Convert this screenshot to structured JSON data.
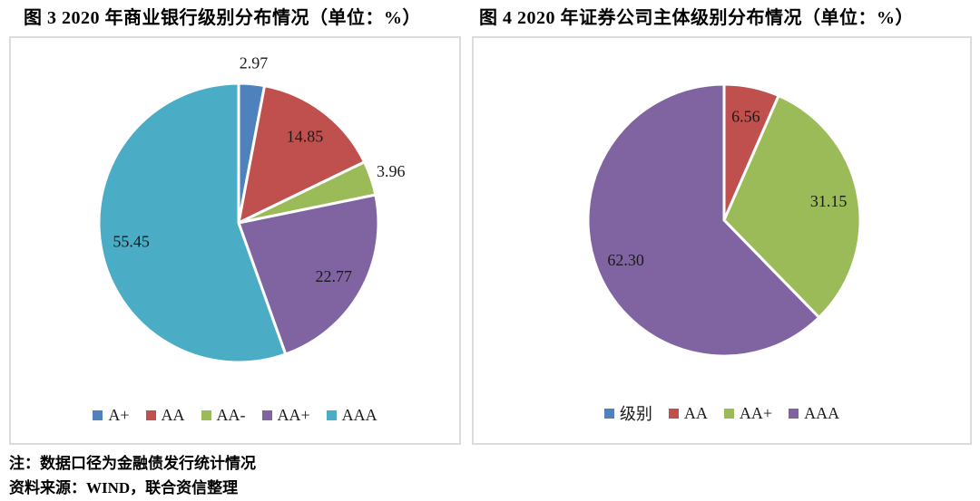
{
  "palette": {
    "blue": "#4F81BD",
    "red": "#C0504D",
    "green": "#9BBB59",
    "purple": "#8064A2",
    "cyan": "#4BACC6",
    "panel_border": "#dcdcdc",
    "label_text": "#1a1a1a"
  },
  "chart_data": [
    {
      "type": "pie",
      "title": "图 3  2020 年商业银行级别分布情况（单位：%）",
      "unit": "%",
      "start_angle_deg": 0,
      "legend_position": "bottom",
      "slices": [
        {
          "label": "A+",
          "value": 2.97,
          "color": "#4F81BD",
          "label_outside": true
        },
        {
          "label": "AA",
          "value": 14.85,
          "color": "#C0504D",
          "label_outside": false
        },
        {
          "label": "AA-",
          "value": 3.96,
          "color": "#9BBB59",
          "label_outside": true
        },
        {
          "label": "AA+",
          "value": 22.77,
          "color": "#8064A2",
          "label_outside": false
        },
        {
          "label": "AAA",
          "value": 55.45,
          "color": "#4BACC6",
          "label_outside": false
        }
      ],
      "legend": [
        {
          "label": "A+",
          "color": "#4F81BD"
        },
        {
          "label": "AA",
          "color": "#C0504D"
        },
        {
          "label": "AA-",
          "color": "#9BBB59"
        },
        {
          "label": "AA+",
          "color": "#8064A2"
        },
        {
          "label": "AAA",
          "color": "#4BACC6"
        }
      ]
    },
    {
      "type": "pie",
      "title": "图 4  2020 年证券公司主体级别分布情况（单位：%）",
      "unit": "%",
      "start_angle_deg": 0,
      "legend_position": "bottom",
      "slices": [
        {
          "label": "AA",
          "value": 6.56,
          "color": "#C0504D",
          "label_outside": false
        },
        {
          "label": "AA+",
          "value": 31.15,
          "color": "#9BBB59",
          "label_outside": false
        },
        {
          "label": "AAA",
          "value": 62.3,
          "color": "#8064A2",
          "label_outside": false
        }
      ],
      "legend": [
        {
          "label": "级别",
          "color": "#4F81BD"
        },
        {
          "label": "AA",
          "color": "#C0504D"
        },
        {
          "label": "AA+",
          "color": "#9BBB59"
        },
        {
          "label": "AAA",
          "color": "#8064A2"
        }
      ]
    }
  ],
  "notes": [
    "注：数据口径为金融债发行统计情况",
    "资料来源：WIND，联合资信整理"
  ]
}
